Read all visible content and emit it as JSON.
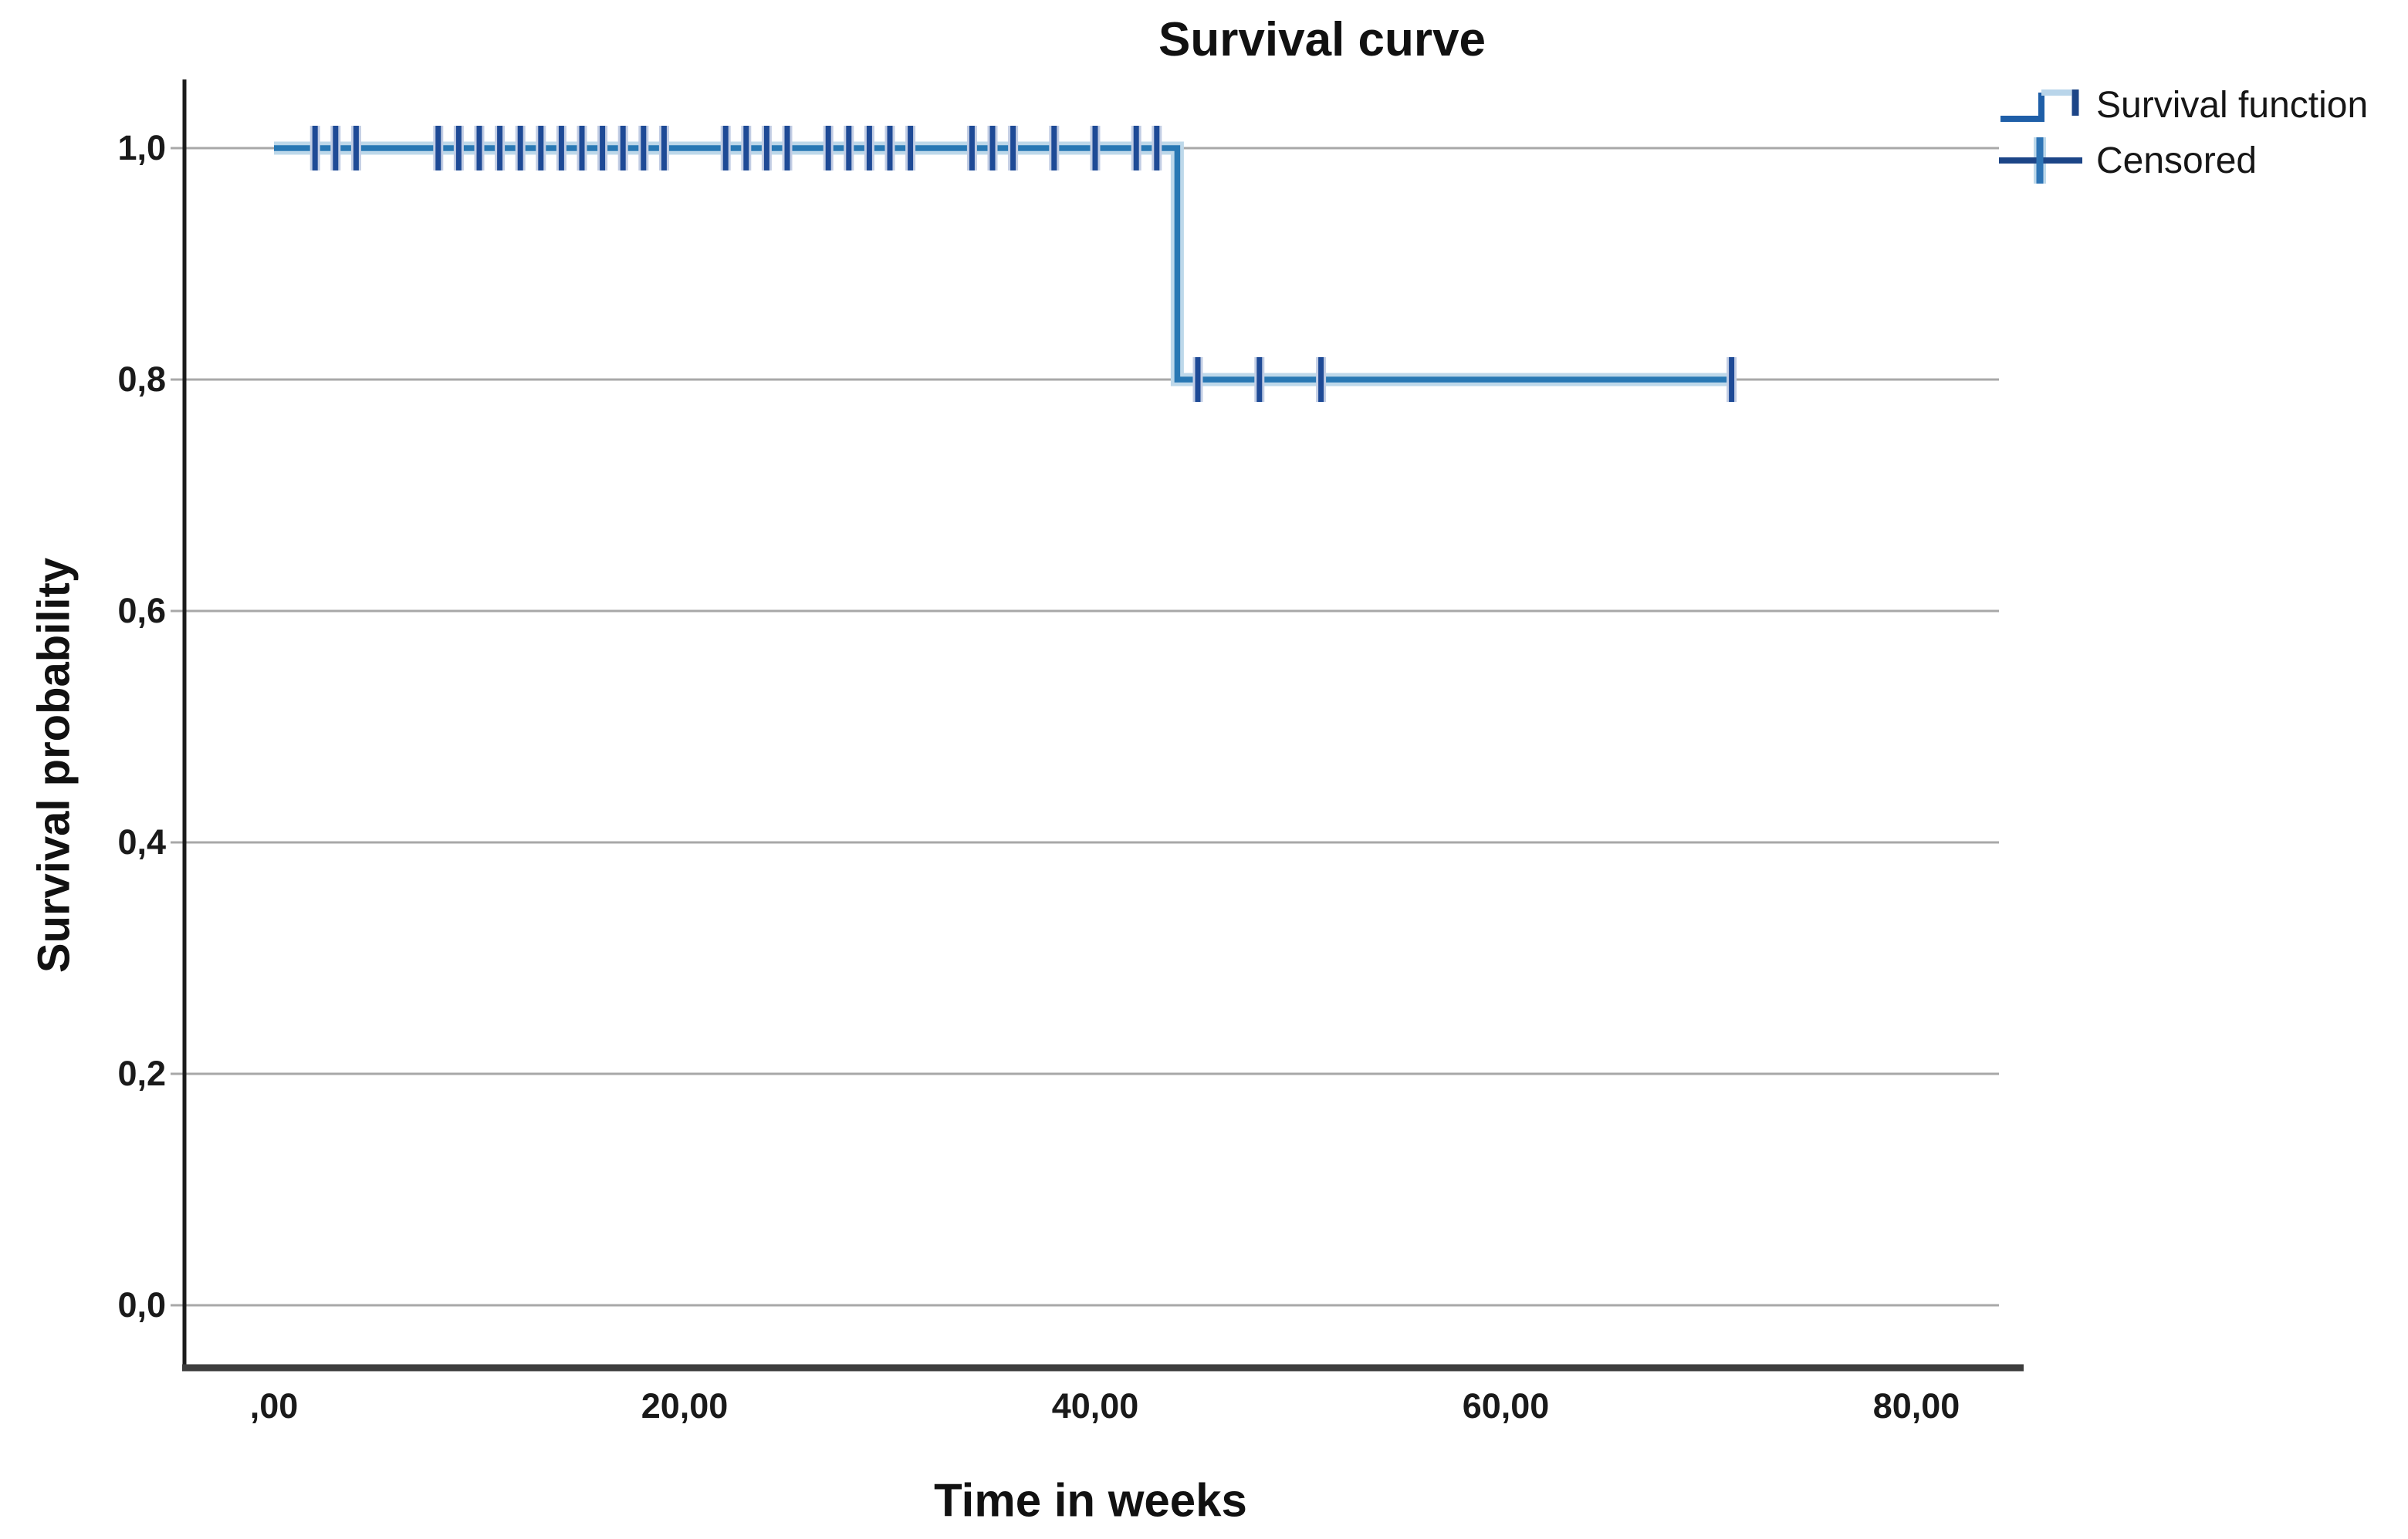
{
  "title": "Survival curve",
  "axes": {
    "x_label": "Time in weeks",
    "y_label": "Survival probability"
  },
  "legend": [
    {
      "label": "Survival function",
      "icon": "step-line-icon"
    },
    {
      "label": "Censored",
      "icon": "censored-plus-icon"
    }
  ],
  "colors": {
    "line": "#2878b4",
    "line_halo": "#bdd8ea",
    "censor": "#1e4a96",
    "censor_halo": "#c2cde4",
    "grid": "#a8a8a8",
    "axis_left": "#1b1b1b",
    "axis_bottom": "#3d3d3d",
    "text": "#111111"
  },
  "chart_data": {
    "type": "line",
    "subtype": "kaplan-meier-step",
    "title": "Survival curve",
    "xlabel": "Time in weeks",
    "ylabel": "Survival probability",
    "xlim": [
      -4.7,
      85
    ],
    "ylim": [
      -0.07,
      1.07
    ],
    "grid": "horizontal",
    "legend_position": "top-right",
    "x_tick_values": [
      0,
      20,
      40,
      60,
      80
    ],
    "x_tick_labels": [
      ",00",
      "20,00",
      "40,00",
      "60,00",
      "80,00"
    ],
    "y_tick_values": [
      1.0,
      0.8,
      0.6,
      0.4,
      0.2,
      0.0
    ],
    "y_tick_labels": [
      "1,0",
      "0,8",
      "0,6",
      "0,4",
      "0,2",
      "0,0"
    ],
    "series": [
      {
        "name": "Survival function",
        "step_points": [
          [
            0,
            1.0
          ],
          [
            44,
            1.0
          ],
          [
            44,
            0.8
          ],
          [
            71,
            0.8
          ]
        ]
      }
    ],
    "censored": [
      [
        2,
        1.0
      ],
      [
        3,
        1.0
      ],
      [
        4,
        1.0
      ],
      [
        8,
        1.0
      ],
      [
        9,
        1.0
      ],
      [
        10,
        1.0
      ],
      [
        11,
        1.0
      ],
      [
        12,
        1.0
      ],
      [
        13,
        1.0
      ],
      [
        14,
        1.0
      ],
      [
        15,
        1.0
      ],
      [
        16,
        1.0
      ],
      [
        17,
        1.0
      ],
      [
        18,
        1.0
      ],
      [
        19,
        1.0
      ],
      [
        22,
        1.0
      ],
      [
        23,
        1.0
      ],
      [
        24,
        1.0
      ],
      [
        25,
        1.0
      ],
      [
        27,
        1.0
      ],
      [
        28,
        1.0
      ],
      [
        29,
        1.0
      ],
      [
        30,
        1.0
      ],
      [
        31,
        1.0
      ],
      [
        34,
        1.0
      ],
      [
        35,
        1.0
      ],
      [
        36,
        1.0
      ],
      [
        38,
        1.0
      ],
      [
        40,
        1.0
      ],
      [
        42,
        1.0
      ],
      [
        43,
        1.0
      ],
      [
        45,
        0.8
      ],
      [
        48,
        0.8
      ],
      [
        51,
        0.8
      ],
      [
        71,
        0.8
      ]
    ]
  }
}
